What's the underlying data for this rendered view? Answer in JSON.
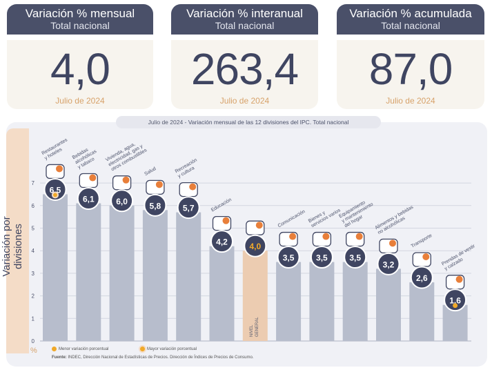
{
  "cards": [
    {
      "title": "Variación % mensual",
      "subtitle": "Total nacional",
      "value": "4,0",
      "date": "Julio de 2024"
    },
    {
      "title": "Variación % interanual",
      "subtitle": "Total nacional",
      "value": "263,4",
      "date": "Julio de 2024"
    },
    {
      "title": "Variación % acumulada",
      "subtitle": "Total nacional",
      "value": "87,0",
      "date": "Julio de 2024"
    }
  ],
  "chart_title_date": "Julio de 2024",
  "chart_title_text": " - Variación mensual de las 12 divisiones del IPC. Total nacional",
  "unit": "%",
  "legend": [
    "Menor variación porcentual",
    "Mayor variación porcentual"
  ],
  "source_bold": "Fuente:",
  "source_text": " INDEC, Dirección Nacional de Estadísticas de Precios. Dirección de Índices de Precios de Consumo.",
  "colors": {
    "bar": "#b7bdcc",
    "highlight_bar": "#ecccb1",
    "circle": "#3f4561",
    "highlight_value": "#f0a929",
    "accent": "#f0a929"
  },
  "chart_data": {
    "type": "bar",
    "ylabel": "Variación por divisiones",
    "ylim": [
      0,
      7
    ],
    "yticks": [
      0,
      1,
      2,
      3,
      4,
      5,
      6,
      7
    ],
    "grid": true,
    "categories": [
      {
        "label": [
          "Restaurantes",
          "y hoteles"
        ],
        "icon": "restaurant-icon"
      },
      {
        "label": [
          "Bebidas",
          "alcohólicas",
          "y tabaco"
        ],
        "icon": "drinks-tobacco-icon"
      },
      {
        "label": [
          "Vivienda, agua,",
          "electricidad, gas y",
          "otros combustibles"
        ],
        "icon": "lightbulb-icon"
      },
      {
        "label": [
          "Salud"
        ],
        "icon": "health-cross-icon"
      },
      {
        "label": [
          "Recreación",
          "y cultura"
        ],
        "icon": "beach-umbrella-icon"
      },
      {
        "label": [
          "Educación"
        ],
        "icon": "notebook-icon"
      },
      {
        "label": [
          "NIVEL",
          "GENERAL"
        ],
        "icon": "shopping-basket-icon"
      },
      {
        "label": [
          "Comunicación"
        ],
        "icon": "phone-icon"
      },
      {
        "label": [
          "Bienes y",
          "servicios varios"
        ],
        "icon": "comb-icon"
      },
      {
        "label": [
          "Equipamiento",
          "y mantenimiento",
          "del hogar"
        ],
        "icon": "sofa-icon"
      },
      {
        "label": [
          "Alimentos y bebidas",
          "no alcohólicas"
        ],
        "icon": "food-icon"
      },
      {
        "label": [
          "Transporte"
        ],
        "icon": "car-icon"
      },
      {
        "label": [
          "Prendas de vestir",
          "y calzado"
        ],
        "icon": "tshirt-icon"
      }
    ],
    "values": [
      6.5,
      6.1,
      6.0,
      5.8,
      5.7,
      4.2,
      4.0,
      3.5,
      3.5,
      3.5,
      3.2,
      2.6,
      1.6
    ],
    "value_labels": [
      "6,5",
      "6,1",
      "6,0",
      "5,8",
      "5,7",
      "4,2",
      "4,0",
      "3,5",
      "3,5",
      "3,5",
      "3,2",
      "2,6",
      "1,6"
    ],
    "highlight_index": 6,
    "max_index": 0,
    "min_index": 12
  }
}
